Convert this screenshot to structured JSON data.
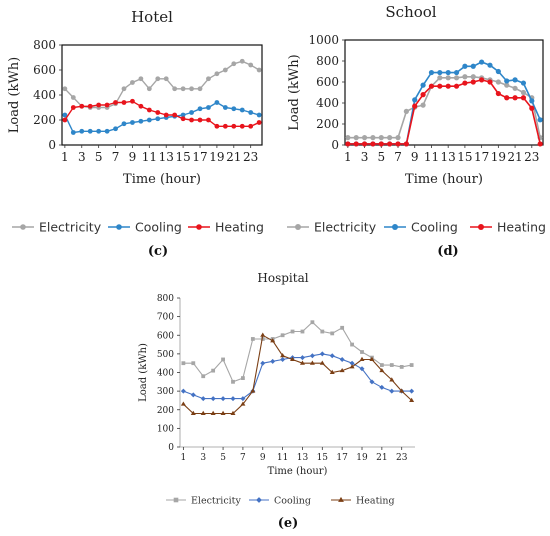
{
  "chart_data": [
    {
      "panel": "(c)",
      "type": "line",
      "title": "Hotel",
      "xlabel": "Time (hour)",
      "ylabel": "Load (kWh)",
      "ylim": [
        0,
        800
      ],
      "yticks": [
        0,
        200,
        400,
        600,
        800
      ],
      "x": [
        1,
        2,
        3,
        4,
        5,
        6,
        7,
        8,
        9,
        10,
        11,
        12,
        13,
        14,
        15,
        16,
        17,
        18,
        19,
        20,
        21,
        22,
        23,
        24
      ],
      "xticks": [
        1,
        3,
        5,
        7,
        9,
        11,
        13,
        15,
        17,
        19,
        21,
        23
      ],
      "grid": false,
      "legend": "bottom",
      "series": [
        {
          "name": "Electricity",
          "color": "#a6a6a6",
          "marker": "circle",
          "values": [
            450,
            380,
            310,
            300,
            300,
            300,
            330,
            450,
            500,
            530,
            450,
            530,
            530,
            450,
            450,
            450,
            450,
            530,
            570,
            600,
            650,
            670,
            640,
            600
          ]
        },
        {
          "name": "Cooling",
          "color": "#2e86c9",
          "marker": "circle",
          "values": [
            240,
            100,
            110,
            110,
            110,
            110,
            130,
            170,
            180,
            190,
            200,
            210,
            220,
            230,
            240,
            260,
            290,
            300,
            340,
            300,
            290,
            280,
            260,
            240
          ]
        },
        {
          "name": "Heating",
          "color": "#e8141c",
          "marker": "circle",
          "values": [
            200,
            300,
            310,
            310,
            320,
            320,
            340,
            340,
            350,
            310,
            280,
            260,
            240,
            240,
            210,
            200,
            200,
            200,
            150,
            150,
            150,
            150,
            150,
            180
          ]
        }
      ]
    },
    {
      "panel": "(d)",
      "type": "line",
      "title": "School",
      "xlabel": "Time (hour)",
      "ylabel": "Load (kWh)",
      "ylim": [
        0,
        1000
      ],
      "yticks": [
        0,
        200,
        400,
        600,
        800,
        1000
      ],
      "x": [
        1,
        2,
        3,
        4,
        5,
        6,
        7,
        8,
        9,
        10,
        11,
        12,
        13,
        14,
        15,
        16,
        17,
        18,
        19,
        20,
        21,
        22,
        23,
        24
      ],
      "xticks": [
        1,
        3,
        5,
        7,
        9,
        11,
        13,
        15,
        17,
        19,
        21,
        23
      ],
      "grid": false,
      "legend": "bottom",
      "series": [
        {
          "name": "Electricity",
          "color": "#a6a6a6",
          "marker": "circle",
          "values": [
            70,
            70,
            70,
            70,
            70,
            70,
            70,
            320,
            360,
            380,
            560,
            640,
            640,
            640,
            650,
            650,
            640,
            620,
            600,
            570,
            540,
            500,
            450,
            70
          ]
        },
        {
          "name": "Cooling",
          "color": "#2e86c9",
          "marker": "circle",
          "values": [
            10,
            10,
            10,
            10,
            10,
            10,
            10,
            10,
            430,
            570,
            690,
            690,
            690,
            690,
            750,
            750,
            790,
            760,
            700,
            610,
            620,
            590,
            420,
            240
          ]
        },
        {
          "name": "Heating",
          "color": "#e8141c",
          "marker": "circle",
          "values": [
            10,
            10,
            10,
            10,
            10,
            10,
            10,
            10,
            370,
            480,
            560,
            560,
            560,
            560,
            590,
            600,
            620,
            600,
            490,
            450,
            450,
            450,
            350,
            10
          ]
        }
      ]
    },
    {
      "panel": "(e)",
      "type": "line",
      "title": "Hospital",
      "xlabel": "Time (hour)",
      "ylabel": "Load (kWh)",
      "ylim": [
        0,
        800
      ],
      "yticks": [
        0,
        100,
        200,
        300,
        400,
        500,
        600,
        700,
        800
      ],
      "x": [
        1,
        2,
        3,
        4,
        5,
        6,
        7,
        8,
        9,
        10,
        11,
        12,
        13,
        14,
        15,
        16,
        17,
        18,
        19,
        20,
        21,
        22,
        23,
        24
      ],
      "xticks": [
        1,
        3,
        5,
        7,
        9,
        11,
        13,
        15,
        17,
        19,
        21,
        23
      ],
      "grid": false,
      "legend": "bottom",
      "series": [
        {
          "name": "Electricity",
          "color": "#a6a6a6",
          "marker": "square",
          "values": [
            450,
            450,
            380,
            410,
            470,
            350,
            370,
            580,
            580,
            580,
            600,
            620,
            620,
            670,
            620,
            610,
            640,
            550,
            510,
            480,
            440,
            440,
            430,
            440
          ]
        },
        {
          "name": "Cooling",
          "color": "#4472c4",
          "marker": "diamond",
          "values": [
            300,
            280,
            260,
            260,
            260,
            260,
            260,
            300,
            450,
            460,
            470,
            480,
            480,
            490,
            500,
            490,
            470,
            450,
            420,
            350,
            320,
            300,
            300,
            300
          ]
        },
        {
          "name": "Heating",
          "color": "#7b3f15",
          "marker": "triangle",
          "values": [
            230,
            180,
            180,
            180,
            180,
            180,
            230,
            300,
            600,
            570,
            490,
            470,
            450,
            450,
            450,
            400,
            410,
            430,
            470,
            470,
            410,
            360,
            300,
            250
          ]
        }
      ]
    }
  ]
}
